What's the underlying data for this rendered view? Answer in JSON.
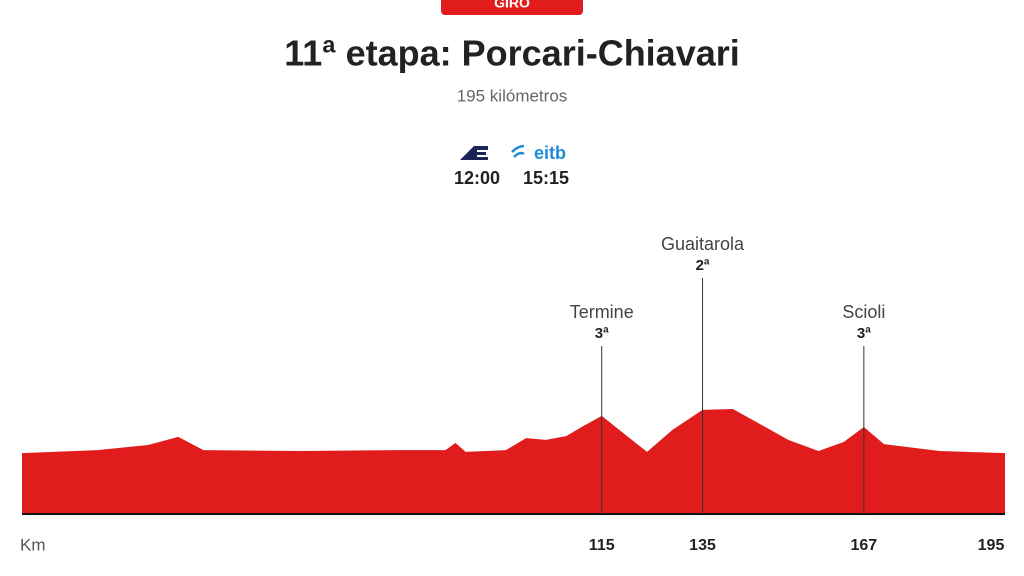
{
  "chart_data": {
    "type": "area",
    "badge": "GIRO",
    "title": "11ª etapa: Porcari-Chiavari",
    "subtitle": "195 kilómetros",
    "broadcasts": [
      {
        "time": "12:00"
      },
      {
        "logo": "eitb",
        "time": "15:15"
      }
    ],
    "x_label": "Km",
    "x": [
      0,
      15,
      25,
      31,
      36,
      55,
      75,
      84,
      86,
      88,
      96,
      100,
      104,
      108,
      111,
      115,
      120,
      124,
      129,
      135,
      141,
      145,
      152,
      158,
      163,
      167,
      171,
      182,
      195
    ],
    "values": [
      203,
      213,
      230,
      257,
      213,
      210,
      213,
      213,
      237,
      207,
      213,
      253,
      247,
      260,
      290,
      327,
      260,
      207,
      280,
      347,
      350,
      313,
      247,
      210,
      240,
      290,
      233,
      210,
      203
    ],
    "color": "#e01c1c",
    "xlim": [
      0,
      195
    ],
    "ylim": [
      0,
      1000
    ],
    "xticks": [
      115,
      135,
      167,
      195
    ],
    "climbs": [
      {
        "name": "Termine",
        "category": "3ª",
        "km": 115
      },
      {
        "name": "Guaitarola",
        "category": "2ª",
        "km": 135
      },
      {
        "name": "Scioli",
        "category": "3ª",
        "km": 167
      }
    ]
  }
}
